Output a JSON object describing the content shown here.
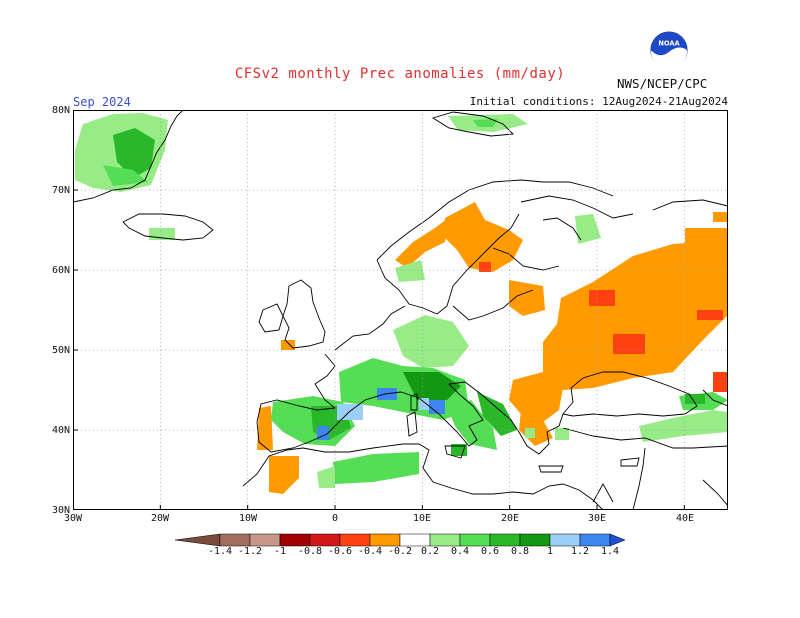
{
  "header": {
    "title": "CFSv2 monthly Prec anomalies (mm/day)",
    "month": "Sep 2024",
    "initial_conditions": "Initial conditions: 12Aug2024-21Aug2024",
    "agency": "NWS/NCEP/CPC",
    "logo_text": "NOAA"
  },
  "axes": {
    "lat_labels": [
      "80N",
      "70N",
      "60N",
      "50N",
      "40N",
      "30N"
    ],
    "lon_labels": [
      "30W",
      "20W",
      "10W",
      "0",
      "10E",
      "20E",
      "30E",
      "40E"
    ],
    "lat_range": [
      30,
      80
    ],
    "lon_range": [
      -30,
      45
    ],
    "grid": "dotted"
  },
  "colorbar": {
    "labels": [
      "-1.4",
      "-1.2",
      "-1",
      "-0.8",
      "-0.6",
      "-0.4",
      "-0.2",
      "0.2",
      "0.4",
      "0.6",
      "0.8",
      "1",
      "1.2",
      "1.4"
    ],
    "colors": [
      "#7a4a3a",
      "#a36d5e",
      "#c99789",
      "#a00000",
      "#d01818",
      "#ff4010",
      "#ff9a00",
      "#ffffff",
      "#98ec88",
      "#55dd55",
      "#2ab82a",
      "#129812",
      "#9ccff8",
      "#3d86f0",
      "#2050d0"
    ]
  },
  "anomaly_regions": [
    {
      "level": "0.2",
      "color": "#98ec88",
      "area": "Greenland east coast"
    },
    {
      "level": "0.6",
      "color": "#2ab82a",
      "area": "Greenland east coast"
    },
    {
      "level": "0.2",
      "color": "#98ec88",
      "area": "Iceland south"
    },
    {
      "level": "0.2",
      "color": "#98ec88",
      "area": "Svalbard"
    },
    {
      "level": "-0.2",
      "color": "#ff9a00",
      "area": "Norway coast"
    },
    {
      "level": "-0.2",
      "color": "#ff9a00",
      "area": "Sweden / Finland"
    },
    {
      "level": "-0.4",
      "color": "#ff4010",
      "area": "Southern Finland"
    },
    {
      "level": "-0.2",
      "color": "#ff9a00",
      "area": "Western Russia"
    },
    {
      "level": "-0.4",
      "color": "#ff4010",
      "area": "Western Russia"
    },
    {
      "level": "-0.2",
      "color": "#ff9a00",
      "area": "Ukraine"
    },
    {
      "level": "-0.4",
      "color": "#ff4010",
      "area": "Ukraine"
    },
    {
      "level": "-0.2",
      "color": "#ff9a00",
      "area": "Balkans / Romania"
    },
    {
      "level": "-0.2",
      "color": "#ff9a00",
      "area": "Portugal"
    },
    {
      "level": "-0.2",
      "color": "#ff9a00",
      "area": "Morocco"
    },
    {
      "level": "0.4",
      "color": "#55dd55",
      "area": "Alps / Northern Italy"
    },
    {
      "level": "0.8",
      "color": "#129812",
      "area": "Northern Italy"
    },
    {
      "level": "0.4",
      "color": "#55dd55",
      "area": "Northern Spain"
    },
    {
      "level": "0.6",
      "color": "#2ab82a",
      "area": "Eastern Spain"
    },
    {
      "level": "1",
      "color": "#9ccff8",
      "area": "Catalonia / Gulf of Lion"
    },
    {
      "level": "1.2",
      "color": "#3d86f0",
      "area": "Spain / Ligurian Sea"
    },
    {
      "level": "0.4",
      "color": "#55dd55",
      "area": "Italy / Adriatic"
    },
    {
      "level": "0.4",
      "color": "#55dd55",
      "area": "Algeria / Tunisia coast"
    },
    {
      "level": "0.4",
      "color": "#55dd55",
      "area": "Turkey / Black Sea coast"
    },
    {
      "level": "0.2",
      "color": "#98ec88",
      "area": "Central Europe"
    }
  ]
}
